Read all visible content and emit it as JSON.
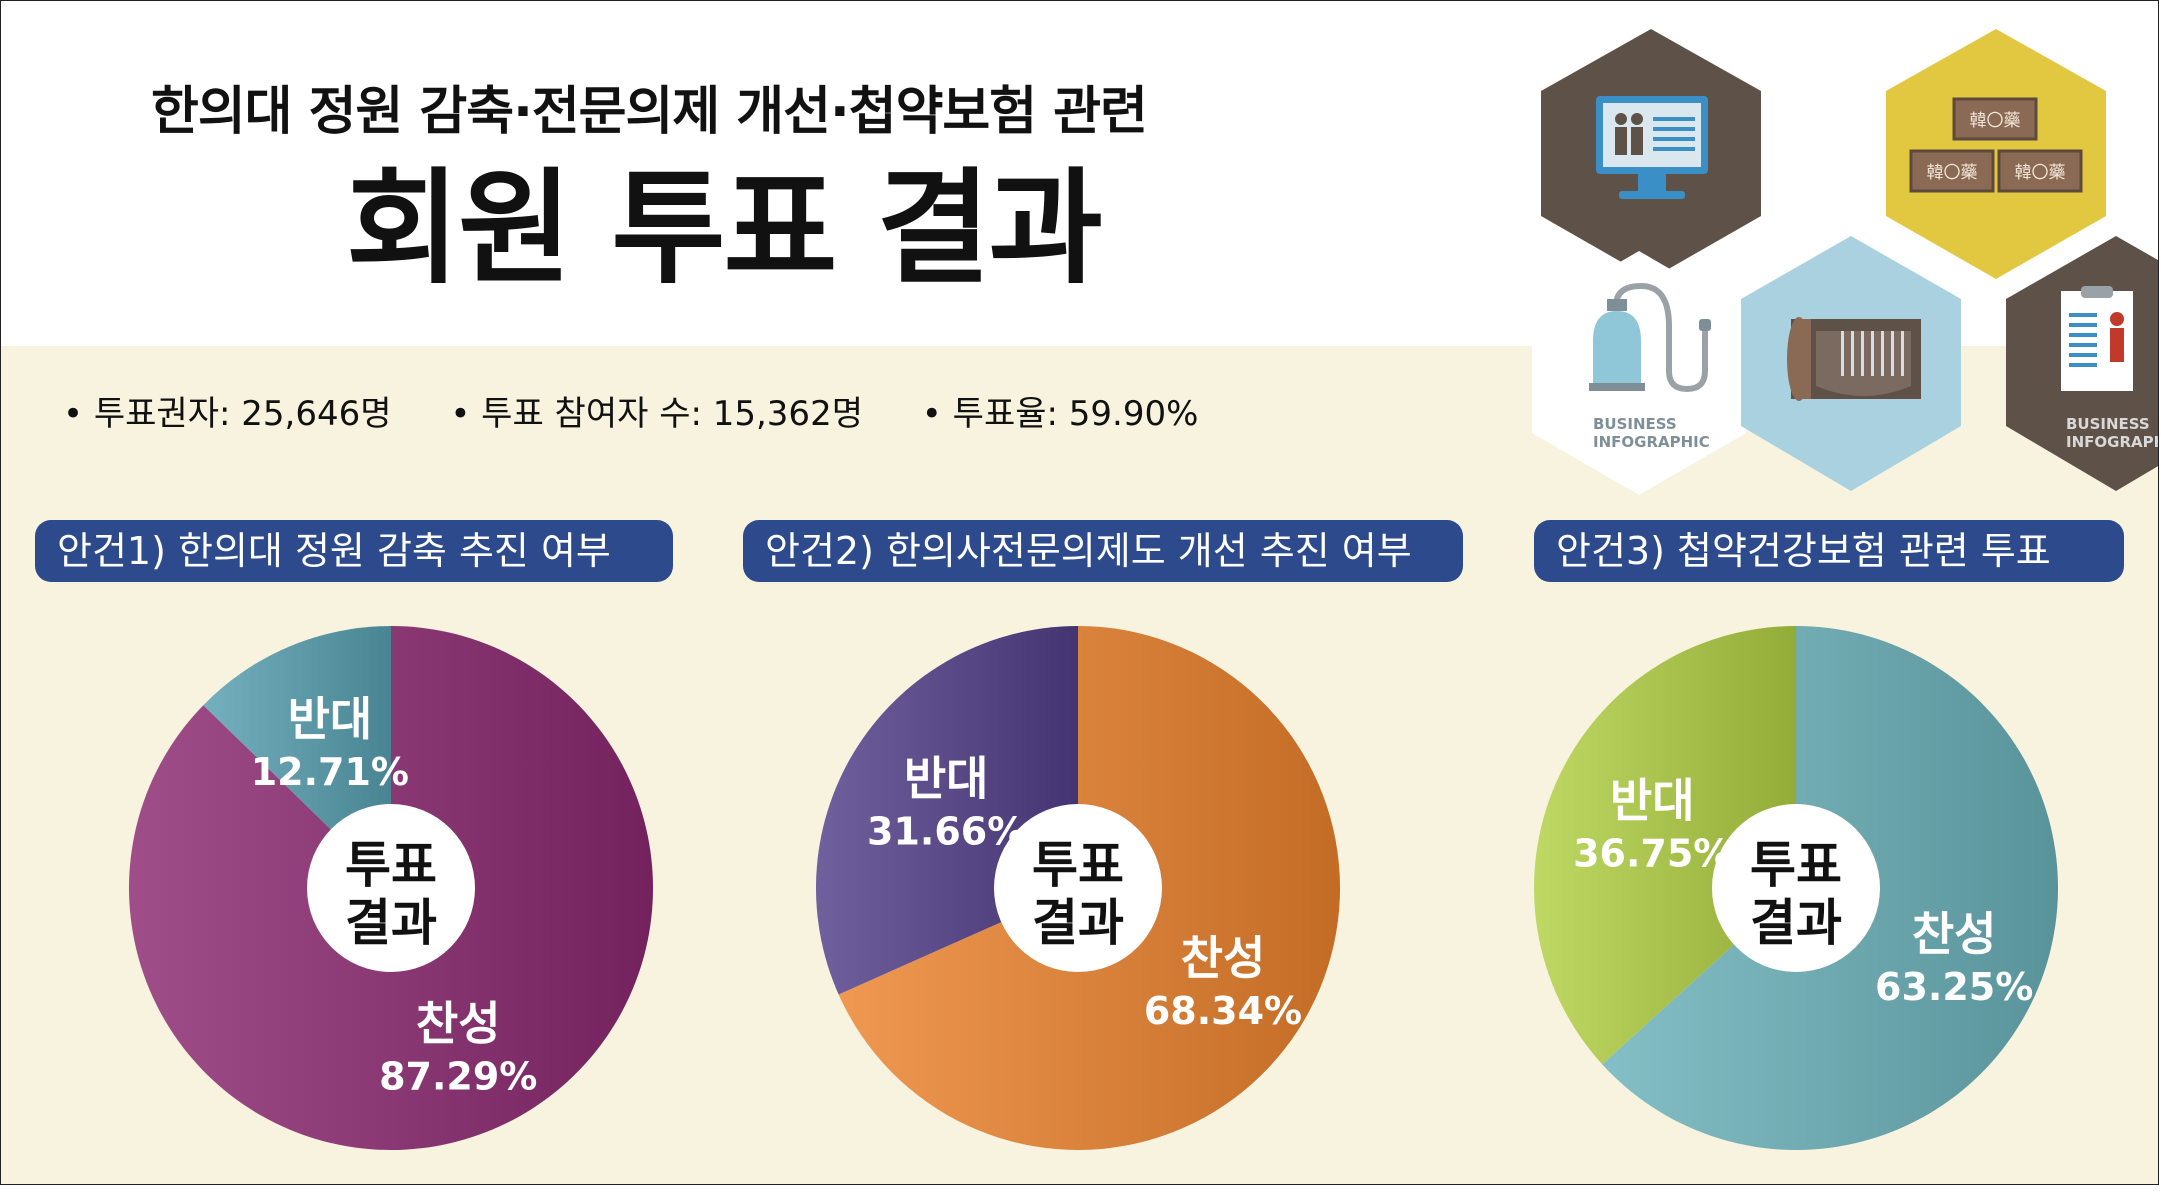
{
  "header": {
    "subtitle": "한의대 정원 감축·전문의제 개선·첩약보험 관련",
    "title": "회원 투표 결과"
  },
  "stats": [
    "• 투표권자: 25,646명",
    "• 투표 참여자 수: 15,362명",
    "• 투표율: 59.90%"
  ],
  "decor": {
    "hex_caption_line1": "BUSINESS",
    "hex_caption_line2": "INFOGRAPHIC",
    "hex_caption2_line2": "INFOGRAPHI",
    "stamp_text": "韓〇藥"
  },
  "chart_data": [
    {
      "type": "pie",
      "title": "안건1) 한의대 정원 감축 추진 여부",
      "center_label": [
        "투표",
        "결과"
      ],
      "slices": [
        {
          "label": "찬성",
          "value": 87.29,
          "display": "87.29%",
          "color": "#8a3873"
        },
        {
          "label": "반대",
          "value": 12.71,
          "display": "12.71%",
          "color": "#5f9aa8"
        }
      ]
    },
    {
      "type": "pie",
      "title": "안건2) 한의사전문의제도 개선 추진 여부",
      "center_label": [
        "투표",
        "결과"
      ],
      "slices": [
        {
          "label": "찬성",
          "value": 68.34,
          "display": "68.34%",
          "color": "#d9823c"
        },
        {
          "label": "반대",
          "value": 31.66,
          "display": "31.66%",
          "color": "#5a4a88"
        }
      ]
    },
    {
      "type": "pie",
      "title": "안건3) 첩약건강보험 관련 투표",
      "center_label": [
        "투표",
        "결과"
      ],
      "slices": [
        {
          "label": "찬성",
          "value": 63.25,
          "display": "63.25%",
          "color": "#6fa9b0"
        },
        {
          "label": "반대",
          "value": 36.75,
          "display": "36.75%",
          "color": "#a9c24e"
        }
      ]
    }
  ]
}
